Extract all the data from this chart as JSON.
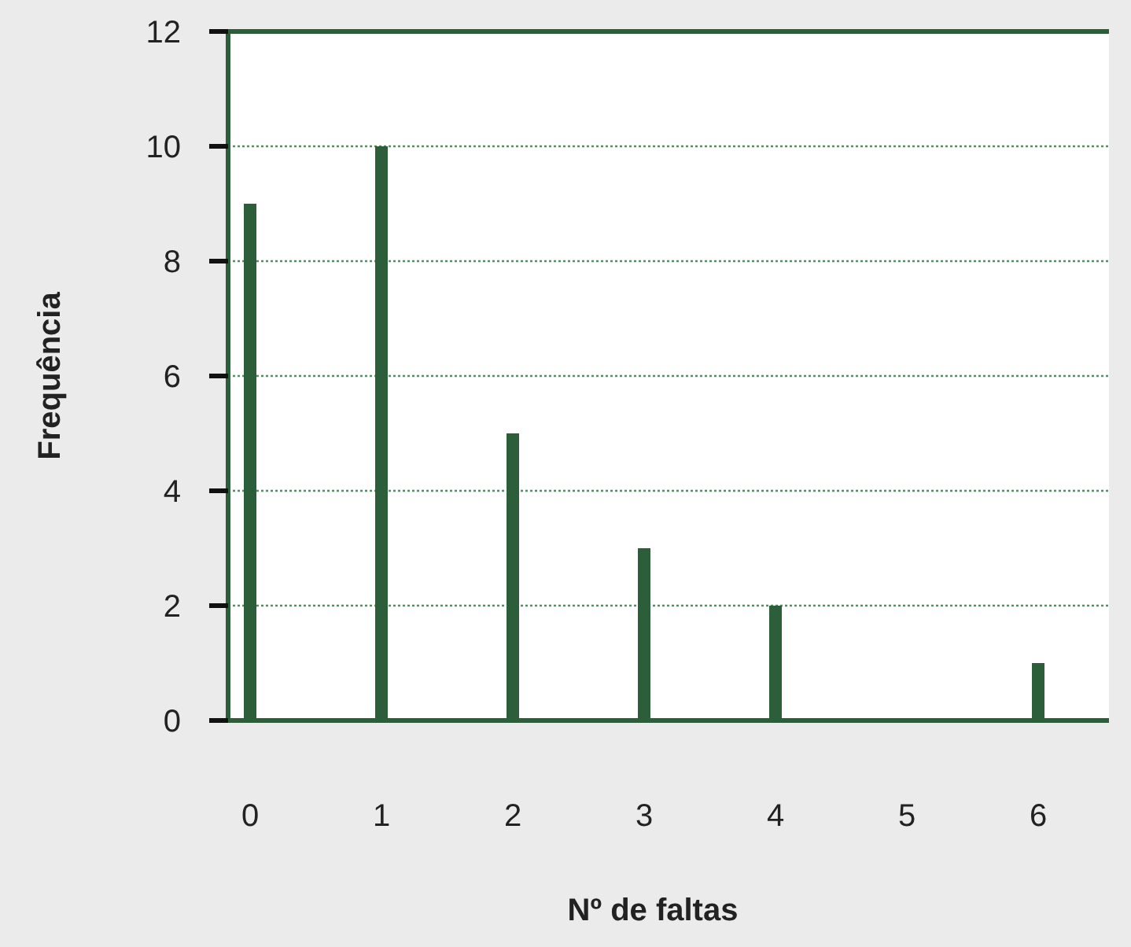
{
  "chart_data": {
    "type": "bar",
    "xlabel": "Nº de faltas",
    "ylabel": "Frequência",
    "categories": [
      "0",
      "1",
      "2",
      "3",
      "4",
      "5",
      "6"
    ],
    "values": [
      9,
      10,
      5,
      3,
      2,
      0,
      1
    ],
    "color": "#2d5e3a",
    "ylim": [
      0,
      12
    ],
    "yticks": [
      0,
      2,
      4,
      6,
      8,
      10,
      12
    ],
    "grid": "y"
  }
}
